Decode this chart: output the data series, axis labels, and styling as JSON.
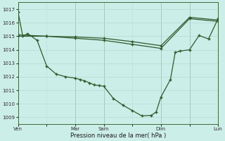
{
  "xlabel": "Pression niveau de la mer( hPa )",
  "bg_color": "#cceee8",
  "line_color": "#2d5a2d",
  "grid_color": "#b8ddd8",
  "ylim": [
    1008.5,
    1017.5
  ],
  "yticks": [
    1009,
    1010,
    1011,
    1012,
    1013,
    1014,
    1015,
    1016,
    1017
  ],
  "xlim": [
    0,
    168
  ],
  "xtick_positions": [
    0,
    48,
    72,
    120,
    144,
    168
  ],
  "xtick_labels": [
    "Ven",
    "Mar",
    "Sam",
    "Dim",
    "",
    "Lun"
  ],
  "vline_positions": [
    48,
    72,
    120,
    144,
    168
  ],
  "series1_x": [
    0,
    4,
    8,
    16,
    24,
    32,
    40,
    48,
    52,
    56,
    60,
    64,
    68,
    72,
    80,
    88,
    96,
    104,
    112,
    116,
    120,
    128,
    132,
    136,
    144,
    152,
    160,
    168
  ],
  "series1_y": [
    1016.8,
    1015.0,
    1015.2,
    1014.7,
    1012.8,
    1012.2,
    1012.0,
    1011.9,
    1011.8,
    1011.7,
    1011.55,
    1011.4,
    1011.35,
    1011.3,
    1010.4,
    1009.9,
    1009.5,
    1009.1,
    1009.15,
    1009.4,
    1010.5,
    1011.8,
    1013.8,
    1013.9,
    1014.0,
    1015.05,
    1014.8,
    1016.3
  ],
  "series2_x": [
    0,
    24,
    48,
    72,
    96,
    120,
    144,
    168
  ],
  "series2_y": [
    1015.0,
    1015.0,
    1014.85,
    1014.7,
    1014.4,
    1014.1,
    1016.3,
    1016.1
  ],
  "series3_x": [
    0,
    24,
    48,
    72,
    96,
    120,
    144,
    168
  ],
  "series3_y": [
    1015.1,
    1015.0,
    1014.95,
    1014.85,
    1014.6,
    1014.3,
    1016.4,
    1016.2
  ]
}
